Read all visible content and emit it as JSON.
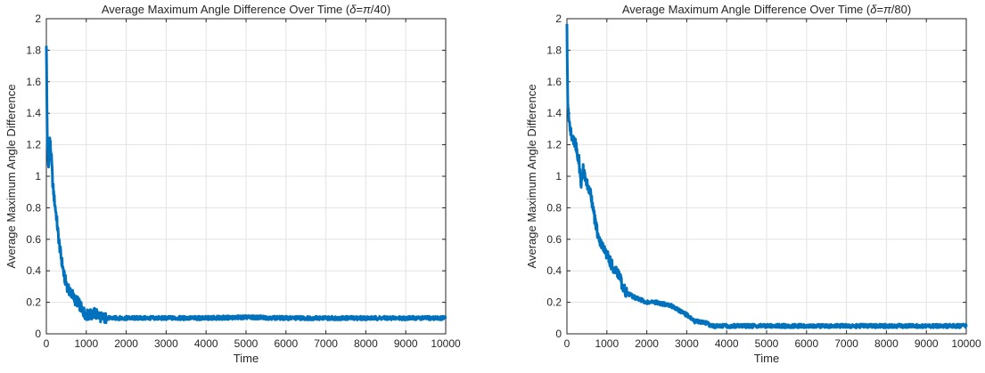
{
  "chart_data": [
    {
      "type": "line",
      "title": "Average Maximum Angle Difference Over Time (",
      "title_delta": "δ",
      "title_eq": "=",
      "title_pi": "π",
      "title_suffix": "/40)",
      "xlabel": "Time",
      "ylabel": "Average Maximum Angle Difference",
      "xlim": [
        0,
        10000
      ],
      "ylim": [
        0,
        2
      ],
      "xticks": [
        0,
        1000,
        2000,
        3000,
        4000,
        5000,
        6000,
        7000,
        8000,
        9000,
        10000
      ],
      "yticks": [
        0,
        0.2,
        0.4,
        0.6,
        0.8,
        1,
        1.2,
        1.4,
        1.6,
        1.8,
        2
      ],
      "xtick_labels": [
        "0",
        "1000",
        "2000",
        "3000",
        "4000",
        "5000",
        "6000",
        "7000",
        "8000",
        "9000",
        "10000"
      ],
      "ytick_labels": [
        "0",
        "0.2",
        "0.4",
        "0.6",
        "0.8",
        "1",
        "1.2",
        "1.4",
        "1.6",
        "1.8",
        "2"
      ],
      "grid": true,
      "color": "#0072BD",
      "series": [
        {
          "x": [
            0,
            20,
            40,
            60,
            80,
            100,
            130,
            160,
            200,
            250,
            300,
            350,
            400,
            450,
            500,
            550,
            600,
            650,
            700,
            800,
            900,
            1000,
            1100,
            1200,
            1300,
            1400,
            1500,
            2000,
            3000,
            4000,
            5000,
            6000,
            7000,
            8000,
            9000,
            10000
          ],
          "y": [
            1.85,
            1.3,
            1.1,
            1.05,
            1.25,
            1.2,
            1.1,
            0.95,
            0.85,
            0.75,
            0.62,
            0.52,
            0.44,
            0.36,
            0.32,
            0.28,
            0.27,
            0.25,
            0.22,
            0.2,
            0.15,
            0.12,
            0.12,
            0.13,
            0.12,
            0.1,
            0.1,
            0.1,
            0.1,
            0.1,
            0.105,
            0.1,
            0.1,
            0.1,
            0.1,
            0.1
          ]
        }
      ]
    },
    {
      "type": "line",
      "title": "Average Maximum Angle Difference Over Time (",
      "title_delta": "δ",
      "title_eq": "=",
      "title_pi": "π",
      "title_suffix": "/80)",
      "xlabel": "Time",
      "ylabel": "Average Maximum Angle Difference",
      "xlim": [
        0,
        10000
      ],
      "ylim": [
        0,
        2
      ],
      "xticks": [
        0,
        1000,
        2000,
        3000,
        4000,
        5000,
        6000,
        7000,
        8000,
        9000,
        10000
      ],
      "yticks": [
        0,
        0.2,
        0.4,
        0.6,
        0.8,
        1,
        1.2,
        1.4,
        1.6,
        1.8,
        2
      ],
      "xtick_labels": [
        "0",
        "1000",
        "2000",
        "3000",
        "4000",
        "5000",
        "6000",
        "7000",
        "8000",
        "9000",
        "10000"
      ],
      "ytick_labels": [
        "0",
        "0.2",
        "0.4",
        "0.6",
        "0.8",
        "1",
        "1.2",
        "1.4",
        "1.6",
        "1.8",
        "2"
      ],
      "grid": true,
      "color": "#0072BD",
      "series": [
        {
          "x": [
            0,
            20,
            40,
            80,
            120,
            200,
            300,
            350,
            400,
            500,
            600,
            700,
            800,
            900,
            1000,
            1100,
            1200,
            1300,
            1400,
            1500,
            1700,
            2000,
            2200,
            2400,
            2600,
            2800,
            3000,
            3200,
            3500,
            3600,
            4000,
            5000,
            6000,
            7000,
            8000,
            9000,
            10000
          ],
          "y": [
            1.95,
            1.45,
            1.4,
            1.3,
            1.25,
            1.22,
            1.1,
            0.95,
            1.05,
            0.95,
            0.88,
            0.72,
            0.6,
            0.55,
            0.5,
            0.45,
            0.4,
            0.38,
            0.3,
            0.26,
            0.23,
            0.2,
            0.2,
            0.19,
            0.18,
            0.15,
            0.12,
            0.08,
            0.07,
            0.05,
            0.05,
            0.05,
            0.05,
            0.05,
            0.05,
            0.05,
            0.05
          ]
        }
      ]
    }
  ]
}
